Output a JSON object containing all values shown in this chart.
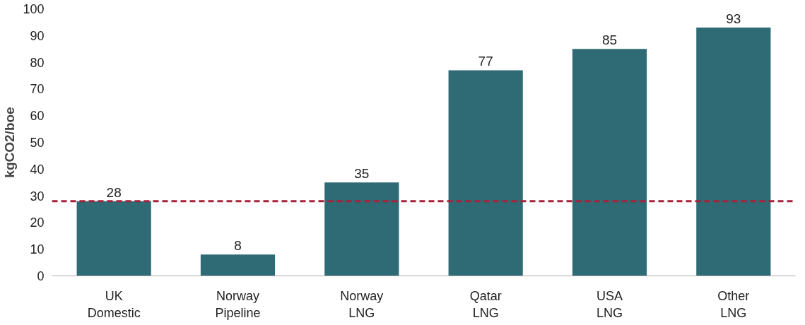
{
  "chart_data": {
    "type": "bar",
    "ylabel": "kgCO2/boe",
    "categories": [
      "UK\nDomestic",
      "Norway\nPipeline",
      "Norway\nLNG",
      "Qatar\nLNG",
      "USA\nLNG",
      "Other\nLNG"
    ],
    "values": [
      28,
      8,
      35,
      77,
      85,
      93
    ],
    "color": "#2e6b74",
    "ylim": [
      0,
      100
    ],
    "yticks": [
      0,
      10,
      20,
      30,
      40,
      50,
      60,
      70,
      80,
      90,
      100
    ],
    "grid": false,
    "data_labels": true,
    "ref_lines": [
      {
        "axis": "y",
        "value": 28,
        "color": "#a8213a",
        "line_style": "dashed"
      }
    ]
  }
}
